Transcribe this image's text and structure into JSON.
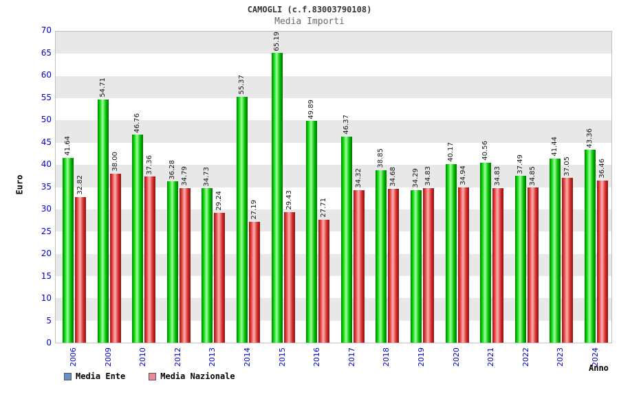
{
  "title": "CAMOGLI (c.f.83003790108)",
  "subtitle": "Media Importi",
  "axes": {
    "y_label": "Euro",
    "x_label": "Anno"
  },
  "legend": [
    {
      "label": "Media Ente",
      "swatch": "#6a8fc8"
    },
    {
      "label": "Media Nazionale",
      "swatch": "#ea8a98"
    }
  ],
  "colors": {
    "bar_ente": "#00c000",
    "bar_nazionale": "#d62e2e",
    "tick_text": "#0000cc",
    "band_gray": "#e8e8e8",
    "band_white": "#ffffff"
  },
  "chart_data": {
    "type": "bar",
    "title": "CAMOGLI (c.f.83003790108)",
    "subtitle": "Media Importi",
    "xlabel": "Anno",
    "ylabel": "Euro",
    "ylim": [
      0,
      70
    ],
    "ytick_step": 5,
    "grid": "horizontal-bands",
    "legend_position": "bottom-left",
    "categories": [
      "2006",
      "2009",
      "2010",
      "2012",
      "2013",
      "2014",
      "2015",
      "2016",
      "2017",
      "2018",
      "2019",
      "2020",
      "2021",
      "2022",
      "2023",
      "2024"
    ],
    "series": [
      {
        "name": "Media Ente",
        "color": "#00c000",
        "values": [
          41.64,
          54.71,
          46.76,
          36.28,
          34.73,
          55.37,
          65.19,
          49.89,
          46.37,
          38.85,
          34.29,
          40.17,
          40.56,
          37.49,
          41.44,
          43.36
        ]
      },
      {
        "name": "Media Nazionale",
        "color": "#d62e2e",
        "values": [
          32.82,
          38.0,
          37.36,
          34.79,
          29.24,
          27.19,
          29.43,
          27.71,
          34.32,
          34.68,
          34.83,
          34.94,
          34.83,
          34.85,
          37.05,
          36.46
        ]
      }
    ]
  }
}
